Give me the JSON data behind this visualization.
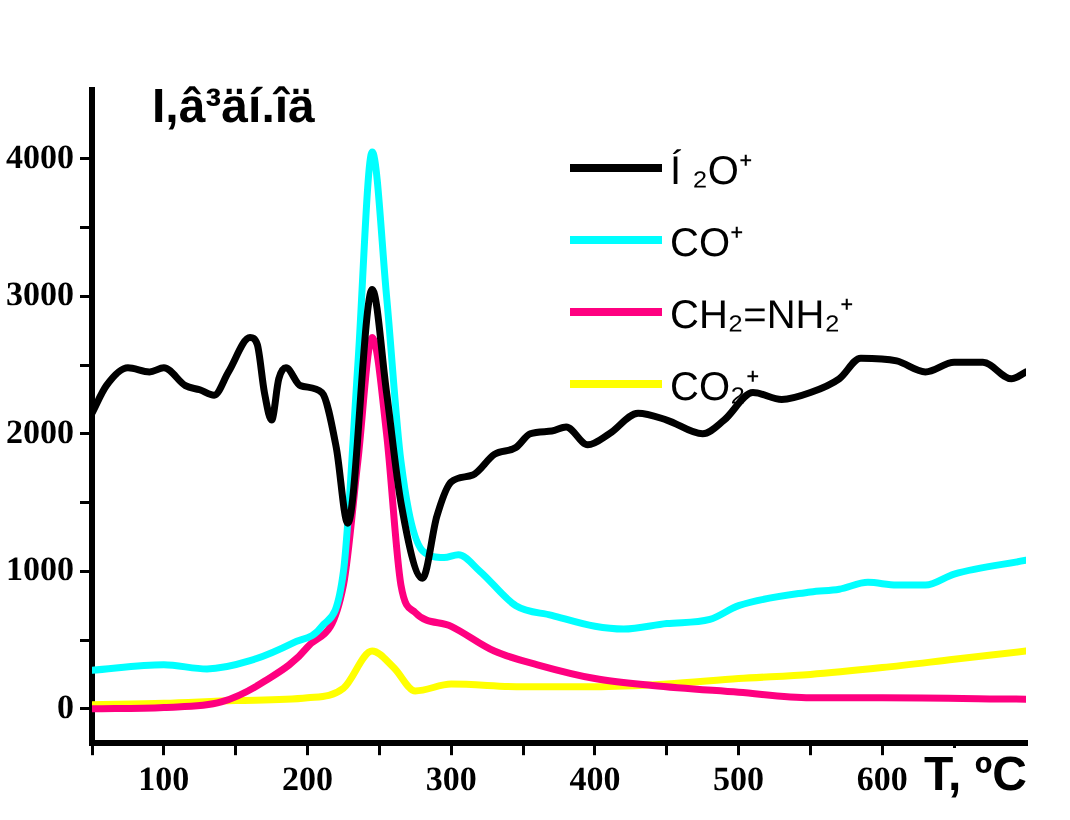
{
  "chart_data": {
    "type": "line",
    "ylabel": "I,â³äí.îä",
    "xlabel": "T, ºC",
    "xlim": [
      50,
      700
    ],
    "ylim": [
      -250,
      4500
    ],
    "xticks": [
      {
        "value": 50,
        "label": null
      },
      100,
      {
        "value": 150,
        "label": null
      },
      200,
      {
        "value": 250,
        "label": null
      },
      300,
      {
        "value": 350,
        "label": null
      },
      400,
      {
        "value": 450,
        "label": null
      },
      500,
      {
        "value": 550,
        "label": null
      },
      600,
      {
        "value": 650,
        "label": null
      }
    ],
    "yticks": [
      0,
      {
        "value": 500,
        "label": null
      },
      1000,
      {
        "value": 1500,
        "label": null
      },
      2000,
      {
        "value": 2500,
        "label": null
      },
      3000,
      {
        "value": 3500,
        "label": null
      },
      4000
    ],
    "legend": "top right",
    "grid": false,
    "marker": "none",
    "line_style": "solid",
    "series": [
      {
        "name": "Í ₂O⁺",
        "color": "#000000",
        "x": [
          50,
          60,
          75,
          90,
          100,
          115,
          125,
          135,
          145,
          160,
          165,
          170,
          175,
          180,
          185,
          195,
          210,
          220,
          228,
          245,
          255,
          265,
          280,
          290,
          300,
          315,
          330,
          345,
          355,
          370,
          380,
          395,
          410,
          430,
          450,
          475,
          490,
          510,
          530,
          550,
          570,
          585,
          610,
          630,
          650,
          670,
          690,
          700
        ],
        "values": [
          2150,
          2350,
          2480,
          2450,
          2480,
          2350,
          2320,
          2280,
          2450,
          2700,
          2650,
          2300,
          2100,
          2400,
          2480,
          2350,
          2300,
          1900,
          1350,
          3050,
          2300,
          1500,
          950,
          1400,
          1650,
          1700,
          1850,
          1900,
          2000,
          2020,
          2050,
          1920,
          2000,
          2150,
          2100,
          2000,
          2100,
          2300,
          2250,
          2300,
          2400,
          2550,
          2530,
          2450,
          2520,
          2520,
          2400,
          2450
        ]
      },
      {
        "name": "CO⁺",
        "color": "#00ffff",
        "x": [
          50,
          100,
          130,
          160,
          190,
          210,
          225,
          235,
          245,
          255,
          265,
          280,
          295,
          305,
          320,
          345,
          370,
          400,
          420,
          450,
          480,
          500,
          550,
          570,
          590,
          610,
          630,
          650,
          700
        ],
        "values": [
          280,
          320,
          290,
          350,
          480,
          600,
          1000,
          2500,
          4050,
          3000,
          1800,
          1150,
          1100,
          1120,
          1000,
          750,
          680,
          600,
          580,
          620,
          650,
          750,
          850,
          870,
          920,
          900,
          900,
          980,
          1080
        ]
      },
      {
        "name": "CH₂=NH₂⁺",
        "color": "#ff0080",
        "x": [
          50,
          100,
          140,
          170,
          200,
          225,
          235,
          245,
          255,
          265,
          275,
          300,
          330,
          360,
          400,
          440,
          500,
          550,
          600,
          700
        ],
        "values": [
          0,
          10,
          50,
          200,
          450,
          900,
          1800,
          2700,
          2000,
          900,
          700,
          600,
          420,
          320,
          220,
          170,
          120,
          80,
          80,
          70
        ]
      },
      {
        "name": "CO₂⁺",
        "color": "#ffff00",
        "x": [
          50,
          100,
          150,
          200,
          225,
          245,
          260,
          275,
          300,
          350,
          400,
          450,
          500,
          550,
          600,
          650,
          700
        ],
        "values": [
          30,
          40,
          60,
          80,
          150,
          420,
          300,
          130,
          180,
          160,
          160,
          180,
          220,
          250,
          300,
          360,
          420
        ]
      }
    ]
  }
}
